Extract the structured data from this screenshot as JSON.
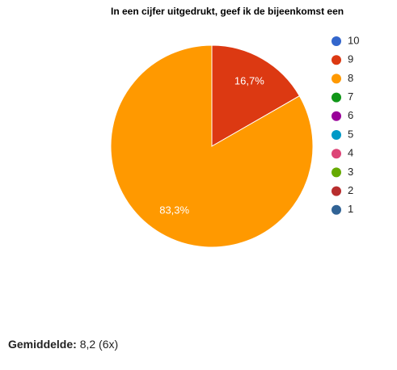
{
  "chart_data": {
    "type": "pie",
    "title": "In een cijfer uitgedrukt, geef ik de bijeenkomst een",
    "categories": [
      "10",
      "9",
      "8",
      "7",
      "6",
      "5",
      "4",
      "3",
      "2",
      "1"
    ],
    "values": [
      0,
      16.7,
      83.3,
      0,
      0,
      0,
      0,
      0,
      0,
      0
    ],
    "value_labels": [
      null,
      "16,7%",
      "83,3%",
      null,
      null,
      null,
      null,
      null,
      null,
      null
    ],
    "colors": [
      "#3366cc",
      "#dc3912",
      "#ff9900",
      "#109618",
      "#990099",
      "#0099c6",
      "#dd4477",
      "#66aa00",
      "#b82e2e",
      "#316395"
    ],
    "legend": "right"
  },
  "footer": {
    "label": "Gemiddelde:",
    "value": "8,2 (6x)"
  }
}
